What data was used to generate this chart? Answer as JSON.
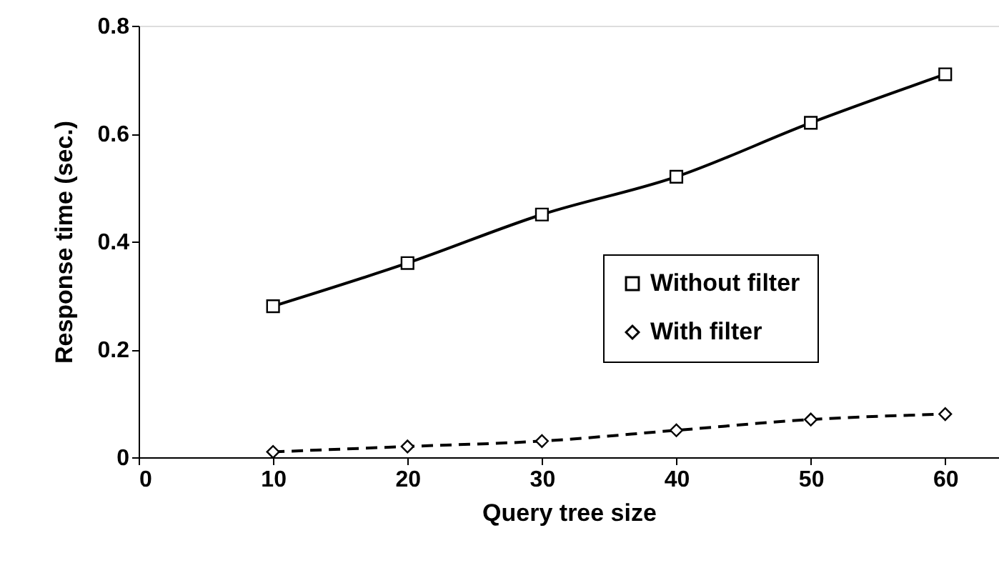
{
  "chart_data": {
    "type": "line",
    "xlabel": "Query tree size",
    "ylabel": "Response time (sec.)",
    "x": [
      10,
      20,
      30,
      40,
      50,
      60
    ],
    "series": [
      {
        "name": "Without filter",
        "color": "#000000",
        "marker": "square",
        "line_style": "solid",
        "values": [
          0.28,
          0.36,
          0.45,
          0.52,
          0.62,
          0.71
        ]
      },
      {
        "name": "With filter",
        "color": "#000000",
        "marker": "diamond",
        "line_style": "dashed",
        "values": [
          0.01,
          0.02,
          0.03,
          0.05,
          0.07,
          0.08
        ]
      }
    ],
    "xlim": [
      0,
      64
    ],
    "xticks": [
      0,
      10,
      20,
      30,
      40,
      50,
      60
    ],
    "ylim": [
      0,
      0.8
    ],
    "yticks": [
      {
        "value": 0,
        "label": "0"
      },
      0.2,
      0.4,
      0.6,
      0.8
    ],
    "grid": false,
    "legend": "right"
  }
}
